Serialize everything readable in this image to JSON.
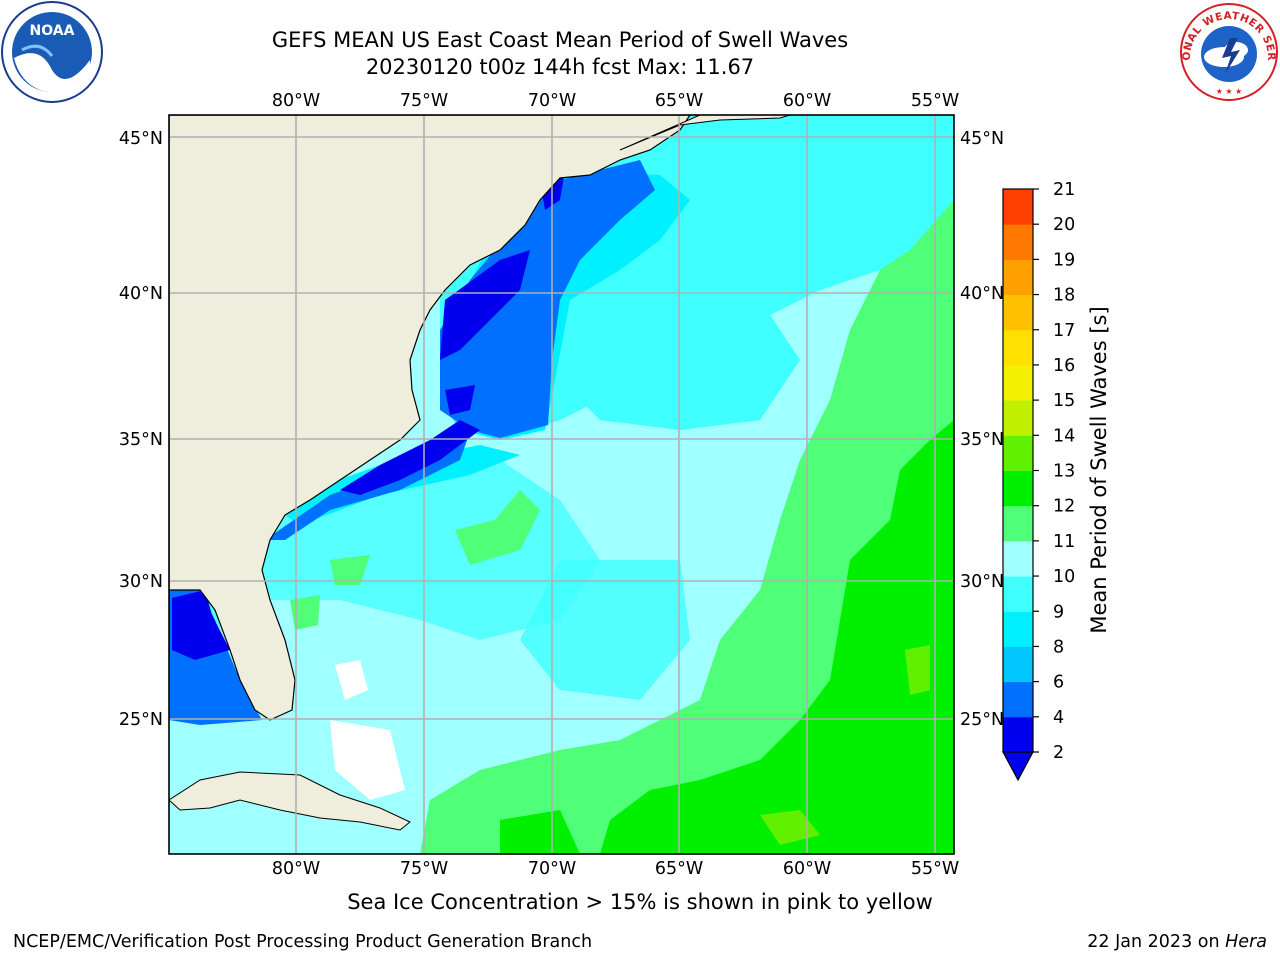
{
  "title_line1": "GEFS MEAN US East Coast Mean Period of Swell Waves",
  "title_line2": "20230120 t00z 144h fcst   Max: 11.67",
  "lon_labels": [
    "80°W",
    "75°W",
    "70°W",
    "65°W",
    "60°W",
    "55°W"
  ],
  "lat_labels": [
    "45°N",
    "40°N",
    "35°N",
    "30°N",
    "25°N"
  ],
  "colorbar": {
    "label": "Mean Period of Swell Waves [s]",
    "ticks": [
      "2",
      "4",
      "6",
      "8",
      "9",
      "10",
      "11",
      "12",
      "13",
      "14",
      "15",
      "16",
      "17",
      "18",
      "19",
      "20",
      "21"
    ],
    "colors": [
      "#0000ee",
      "#0070ff",
      "#00c8ff",
      "#00f0ff",
      "#40ffff",
      "#a0ffff",
      "#50ff78",
      "#00f000",
      "#60f000",
      "#c0f000",
      "#f0f000",
      "#ffe000",
      "#ffc000",
      "#ffa000",
      "#ff7800",
      "#ff4000",
      "#ff0000"
    ]
  },
  "sea_ice_note": "Sea Ice Concentration > 15% is shown in pink to yellow",
  "footer_left": "NCEP/EMC/Verification Post Processing Product Generation Branch",
  "footer_date": "22 Jan 2023 on ",
  "footer_host": "Hera",
  "logos": {
    "left": "NOAA",
    "right": "NATIONAL WEATHER SERVICE"
  }
}
